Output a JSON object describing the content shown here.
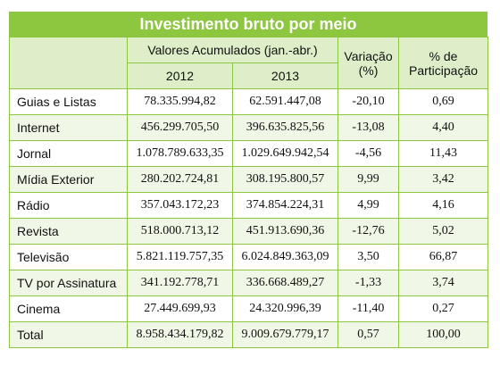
{
  "title": "Investimento bruto por meio",
  "headers": {
    "valores": "Valores Acumulados (jan.-abr.)",
    "year1": "2012",
    "year2": "2013",
    "variacao_l1": "Variação",
    "variacao_l2": "(%)",
    "participacao_l1": "% de",
    "participacao_l2": "Participação"
  },
  "rows": [
    {
      "label": "Guias e Listas",
      "v2012": "78.335.994,82",
      "v2013": "62.591.447,08",
      "variacao": "-20,10",
      "participacao": "0,69"
    },
    {
      "label": "Internet",
      "v2012": "456.299.705,50",
      "v2013": "396.635.825,56",
      "variacao": "-13,08",
      "participacao": "4,40"
    },
    {
      "label": "Jornal",
      "v2012": "1.078.789.633,35",
      "v2013": "1.029.649.942,54",
      "variacao": "-4,56",
      "participacao": "11,43"
    },
    {
      "label": "Mídia Exterior",
      "v2012": "280.202.724,81",
      "v2013": "308.195.800,57",
      "variacao": "9,99",
      "participacao": "3,42"
    },
    {
      "label": "Rádio",
      "v2012": "357.043.172,23",
      "v2013": "374.854.224,31",
      "variacao": "4,99",
      "participacao": "4,16"
    },
    {
      "label": "Revista",
      "v2012": "518.000.713,12",
      "v2013": "451.913.690,36",
      "variacao": "-12,76",
      "participacao": "5,02"
    },
    {
      "label": "Televisão",
      "v2012": "5.821.119.757,35",
      "v2013": "6.024.849.363,09",
      "variacao": "3,50",
      "participacao": "66,87"
    },
    {
      "label": "TV por Assinatura",
      "v2012": "341.192.778,71",
      "v2013": "336.668.489,27",
      "variacao": "-1,33",
      "participacao": "3,74"
    },
    {
      "label": "Cinema",
      "v2012": "27.449.699,93",
      "v2013": "24.320.996,39",
      "variacao": "-11,40",
      "participacao": "0,27"
    },
    {
      "label": "Total",
      "v2012": "8.958.434.179,82",
      "v2013": "9.009.679.779,17",
      "variacao": "0,57",
      "participacao": "100,00"
    }
  ],
  "colors": {
    "accent": "#8dc63f",
    "header_fill": "#ddeec8",
    "alt_row_fill": "#f0f7e6"
  }
}
